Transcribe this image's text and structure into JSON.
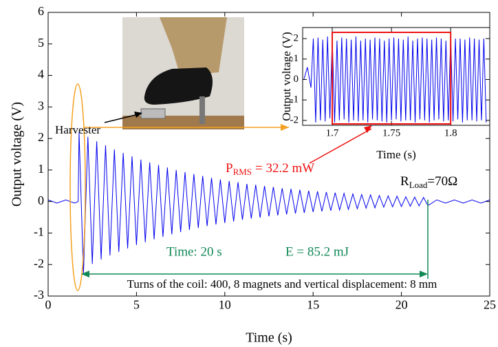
{
  "chart_data": [
    {
      "type": "line",
      "x_label": "Time (s)",
      "y_label": "Output voltage (V)",
      "xlim": [
        0,
        25
      ],
      "ylim": [
        -3,
        6
      ],
      "xticks": [
        0,
        5,
        10,
        15,
        20,
        25
      ],
      "yticks": [
        -3,
        -2,
        -1,
        0,
        1,
        2,
        3,
        4,
        5,
        6
      ],
      "color": "#0000ee",
      "x": [
        0,
        0.5,
        1,
        1.5,
        1.7,
        1.75,
        2,
        2.25,
        2.5,
        2.75,
        3,
        3.25,
        3.5,
        3.75,
        4,
        4.25,
        4.5,
        4.75,
        5,
        5.25,
        5.5,
        5.75,
        6,
        6.25,
        6.5,
        6.75,
        7,
        7.25,
        7.5,
        7.75,
        8,
        8.25,
        8.5,
        8.75,
        9,
        9.25,
        9.5,
        9.75,
        10,
        10.25,
        10.5,
        10.75,
        11,
        11.25,
        11.5,
        11.75,
        12,
        12.25,
        12.5,
        12.75,
        13,
        13.25,
        13.5,
        13.75,
        14,
        14.25,
        14.5,
        14.75,
        15,
        15.25,
        15.5,
        15.75,
        16,
        16.25,
        16.5,
        16.75,
        17,
        17.25,
        17.5,
        17.75,
        18,
        18.25,
        18.5,
        18.75,
        19,
        19.25,
        19.5,
        19.75,
        20,
        20.25,
        20.5,
        20.75,
        21,
        21.25,
        21.5,
        22,
        22.5,
        23,
        23.5,
        24,
        24.5,
        25
      ],
      "values": [
        0.05,
        -0.05,
        0.05,
        -0.05,
        0,
        2.2,
        -2.3,
        2.05,
        -1.98,
        1.91,
        -1.84,
        1.78,
        -1.71,
        1.65,
        -1.6,
        1.54,
        -1.49,
        1.43,
        -1.38,
        1.33,
        -1.29,
        1.24,
        -1.2,
        1.16,
        -1.12,
        1.08,
        -1.04,
        1.0,
        -0.97,
        0.93,
        -0.9,
        0.87,
        -0.84,
        0.81,
        -0.78,
        0.75,
        -0.73,
        0.7,
        -0.68,
        0.65,
        -0.63,
        0.61,
        -0.58,
        0.56,
        -0.54,
        0.53,
        -0.51,
        0.49,
        -0.47,
        0.46,
        -0.44,
        0.42,
        -0.41,
        0.4,
        -0.38,
        0.37,
        -0.36,
        0.34,
        -0.33,
        0.32,
        -0.31,
        0.3,
        -0.29,
        0.28,
        -0.27,
        0.26,
        -0.25,
        0.24,
        -0.23,
        0.22,
        -0.21,
        0.21,
        -0.2,
        0.19,
        -0.18,
        0.18,
        -0.17,
        0.17,
        -0.16,
        0.15,
        -0.15,
        0.14,
        -0.14,
        0.13,
        -0.13,
        0.05,
        -0.05,
        0.05,
        -0.05,
        0.05,
        -0.05,
        0.05
      ],
      "annotations": {
        "harvester": "Harvester",
        "power_symbol": "P",
        "power_subscript": "RMS",
        "power_value": "= 32.2 mW",
        "load_symbol": "R",
        "load_subscript": "Load",
        "load_value": "=70Ω",
        "time": "Time: 20 s",
        "energy": "E = 85.2 mJ",
        "note": "Turns of the coil: 400, 8 magnets and vertical displacement: 8 mm"
      }
    },
    {
      "type": "line",
      "x_label": "Time (s)",
      "y_label": "Output voltage (V)",
      "xlim": [
        1.675,
        1.833
      ],
      "ylim": [
        -2.24,
        2.54
      ],
      "xticks": [
        1.7,
        1.75,
        1.8
      ],
      "yticks": [
        -2,
        -1,
        0,
        1,
        2
      ],
      "color": "#0000ee",
      "x": [
        1.676,
        1.679,
        1.682,
        1.684,
        1.686,
        1.688,
        1.69,
        1.692,
        1.694,
        1.696,
        1.698,
        1.7,
        1.702,
        1.704,
        1.706,
        1.708,
        1.71,
        1.712,
        1.714,
        1.716,
        1.718,
        1.72,
        1.722,
        1.724,
        1.726,
        1.728,
        1.73,
        1.732,
        1.734,
        1.736,
        1.738,
        1.74,
        1.742,
        1.744,
        1.746,
        1.748,
        1.75,
        1.752,
        1.754,
        1.756,
        1.758,
        1.76,
        1.762,
        1.764,
        1.766,
        1.768,
        1.77,
        1.772,
        1.774,
        1.776,
        1.778,
        1.78,
        1.782,
        1.784,
        1.786,
        1.788,
        1.79,
        1.792,
        1.794,
        1.796,
        1.798,
        1.8,
        1.802,
        1.804,
        1.806,
        1.808,
        1.81,
        1.812,
        1.814,
        1.816,
        1.818,
        1.82,
        1.822,
        1.824,
        1.826,
        1.828,
        1.83
      ],
      "values": [
        0,
        0.6,
        -0.4,
        2.0,
        -2.1,
        2.05,
        -2.0,
        1.95,
        -2.05,
        2.1,
        -1.9,
        2.0,
        -2.1,
        1.9,
        -2.0,
        2.05,
        -1.95,
        2.0,
        -2.1,
        1.95,
        -2.0,
        2.1,
        -2.05,
        1.9,
        -2.0,
        2.0,
        -2.1,
        1.95,
        -1.95,
        2.05,
        -2.0,
        2.0,
        -2.05,
        1.9,
        -2.1,
        2.0,
        -2.0,
        2.05,
        -1.95,
        2.0,
        -2.05,
        1.95,
        -2.0,
        2.1,
        -2.0,
        1.9,
        -2.1,
        2.0,
        -1.95,
        2.05,
        -2.0,
        2.0,
        -2.1,
        1.95,
        -2.0,
        2.05,
        -1.95,
        2.0,
        -2.05,
        1.9,
        -2.0,
        2.1,
        -2.05,
        2.0,
        -1.95,
        2.0,
        -2.1,
        1.95,
        -2.0,
        2.05,
        -2.0,
        2.0,
        -2.05,
        1.95,
        -2.0,
        2.0,
        -2.1
      ]
    }
  ]
}
